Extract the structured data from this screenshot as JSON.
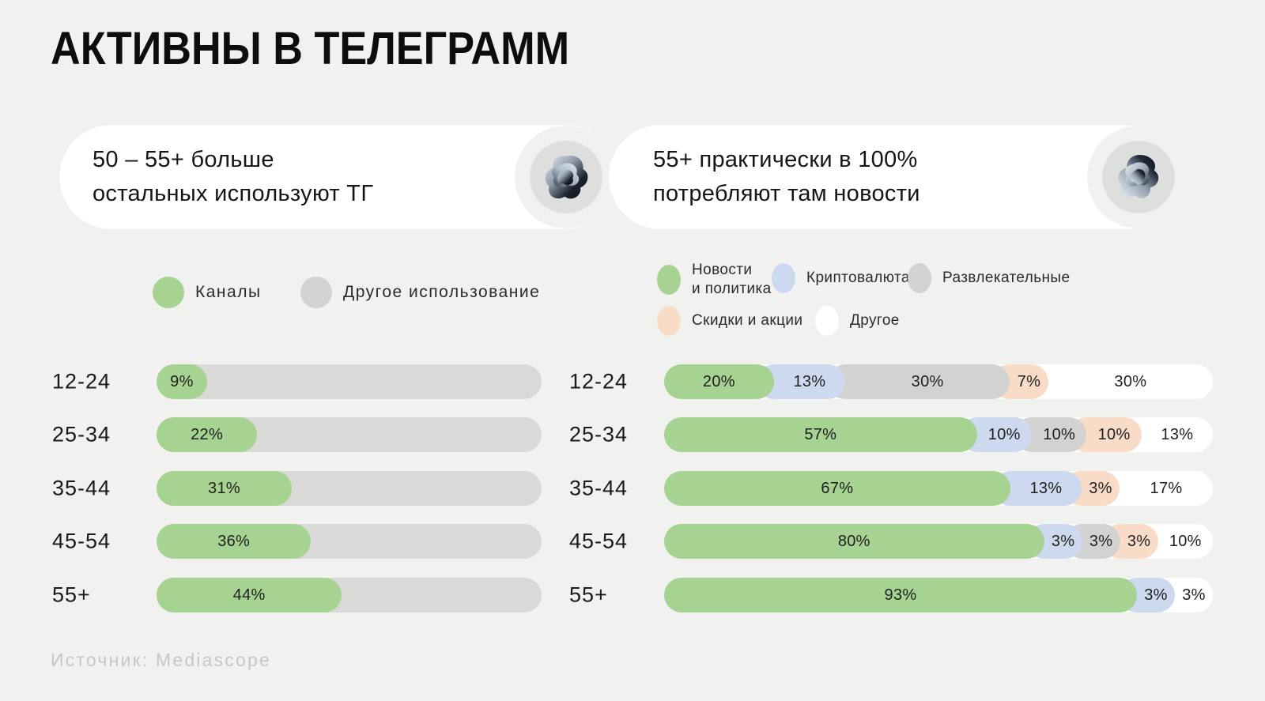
{
  "title": "АКТИВНЫ В ТЕЛЕГРАММ",
  "source": "Источник: Mediascope",
  "colors": {
    "background": "#f1f1ef",
    "card_white": "#ffffff",
    "green": "#a6d292",
    "blue": "#cdd9ee",
    "gray": "#d2d2d0",
    "peach": "#f8dcc7",
    "white_seg": "#ffffff",
    "track_gray": "#d9d9d7",
    "circle_gray": "#dededc",
    "text_dark": "#161616",
    "muted": "#c6c6c4"
  },
  "callouts": [
    {
      "line1": "50 – 55+ больше",
      "line2": "остальных используют ТГ"
    },
    {
      "line1": "55+ практически в 100%",
      "line2": "потребляют там новости"
    }
  ],
  "legend_left": [
    {
      "label": "Каналы",
      "color_key": "green"
    },
    {
      "label": "Другое использование",
      "color_key": "gray"
    }
  ],
  "legend_right": [
    {
      "line1": "Новости",
      "line2": "и политика",
      "color_key": "green"
    },
    {
      "label": "Криптовалюта",
      "color_key": "blue"
    },
    {
      "label": "Развлекательные",
      "color_key": "gray"
    },
    {
      "label": "Скидки и акции",
      "color_key": "peach"
    },
    {
      "label": "Другое",
      "color_key": "white_seg"
    }
  ],
  "chart_data": [
    {
      "type": "bar",
      "orientation": "horizontal",
      "title": "50 – 55+ больше остальных используют ТГ",
      "unit": "%",
      "xlim": [
        0,
        100
      ],
      "grid": false,
      "legend_position": "top",
      "categories": [
        "12-24",
        "25-34",
        "35-44",
        "45-54",
        "55+"
      ],
      "series": [
        {
          "name": "Каналы",
          "color_key": "green",
          "values": [
            9,
            22,
            31,
            36,
            44
          ]
        },
        {
          "name": "Другое использование",
          "color_key": "track_gray",
          "values": [
            91,
            78,
            69,
            64,
            56
          ]
        }
      ]
    },
    {
      "type": "bar",
      "stacked": true,
      "orientation": "horizontal",
      "title": "55+ практически в 100% потребляют там новости",
      "unit": "%",
      "xlim": [
        0,
        100
      ],
      "grid": false,
      "legend_position": "top",
      "categories": [
        "12-24",
        "25-34",
        "35-44",
        "45-54",
        "55+"
      ],
      "series": [
        {
          "name": "Новости и политика",
          "color_key": "green",
          "values": [
            20,
            57,
            67,
            80,
            93
          ]
        },
        {
          "name": "Криптовалюта",
          "color_key": "blue",
          "values": [
            13,
            10,
            13,
            3,
            3
          ]
        },
        {
          "name": "Развлекательные",
          "color_key": "gray",
          "values": [
            30,
            10,
            0,
            3,
            0
          ]
        },
        {
          "name": "Скидки и акции",
          "color_key": "peach",
          "values": [
            7,
            10,
            3,
            3,
            0
          ]
        },
        {
          "name": "Другое",
          "color_key": "white_seg",
          "values": [
            30,
            13,
            17,
            10,
            3
          ]
        }
      ]
    }
  ]
}
